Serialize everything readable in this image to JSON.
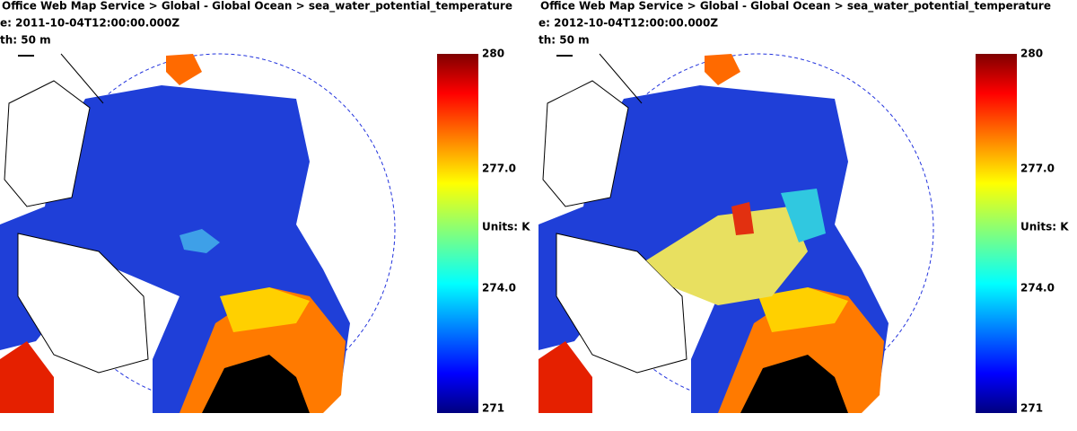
{
  "panels": [
    {
      "header": {
        "service": "Office Web Map Service > Global - Global Ocean > sea_water_potential_temperature",
        "time": "e: 2011-10-04T12:00:00.000Z",
        "depth": "th: 50 m"
      },
      "colorbar": {
        "max": "280",
        "upper": "277.0",
        "units": "Units: K",
        "lower": "274.0",
        "min": "271"
      }
    },
    {
      "header": {
        "service": "Office Web Map Service > Global - Global Ocean > sea_water_potential_temperature",
        "time": "e: 2012-10-04T12:00:00.000Z",
        "depth": "th: 50 m"
      },
      "colorbar": {
        "max": "280",
        "upper": "277.0",
        "units": "Units: K",
        "lower": "274.0",
        "min": "271"
      }
    }
  ]
}
